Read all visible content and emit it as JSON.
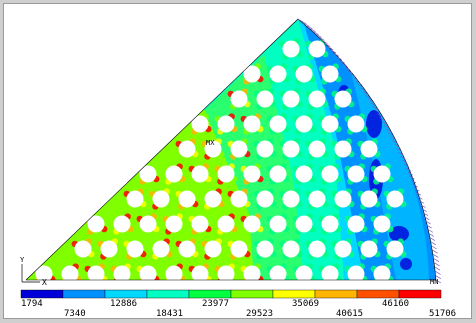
{
  "plot": {
    "triad_label": "X",
    "triad_y_label": "Y",
    "mx_label": "MX",
    "mn_label": "MN"
  },
  "legend": {
    "colors": [
      "#0000d8",
      "#0090ff",
      "#00d8ff",
      "#00ffc0",
      "#00ff40",
      "#7fff00",
      "#ffff00",
      "#ffb400",
      "#ff5000",
      "#ff0000"
    ],
    "labels_top": [
      "1794",
      "12886",
      "23977",
      "35069",
      "46160"
    ],
    "labels_bottom": [
      "7340",
      "18431",
      "29523",
      "40615",
      "51706"
    ]
  }
}
